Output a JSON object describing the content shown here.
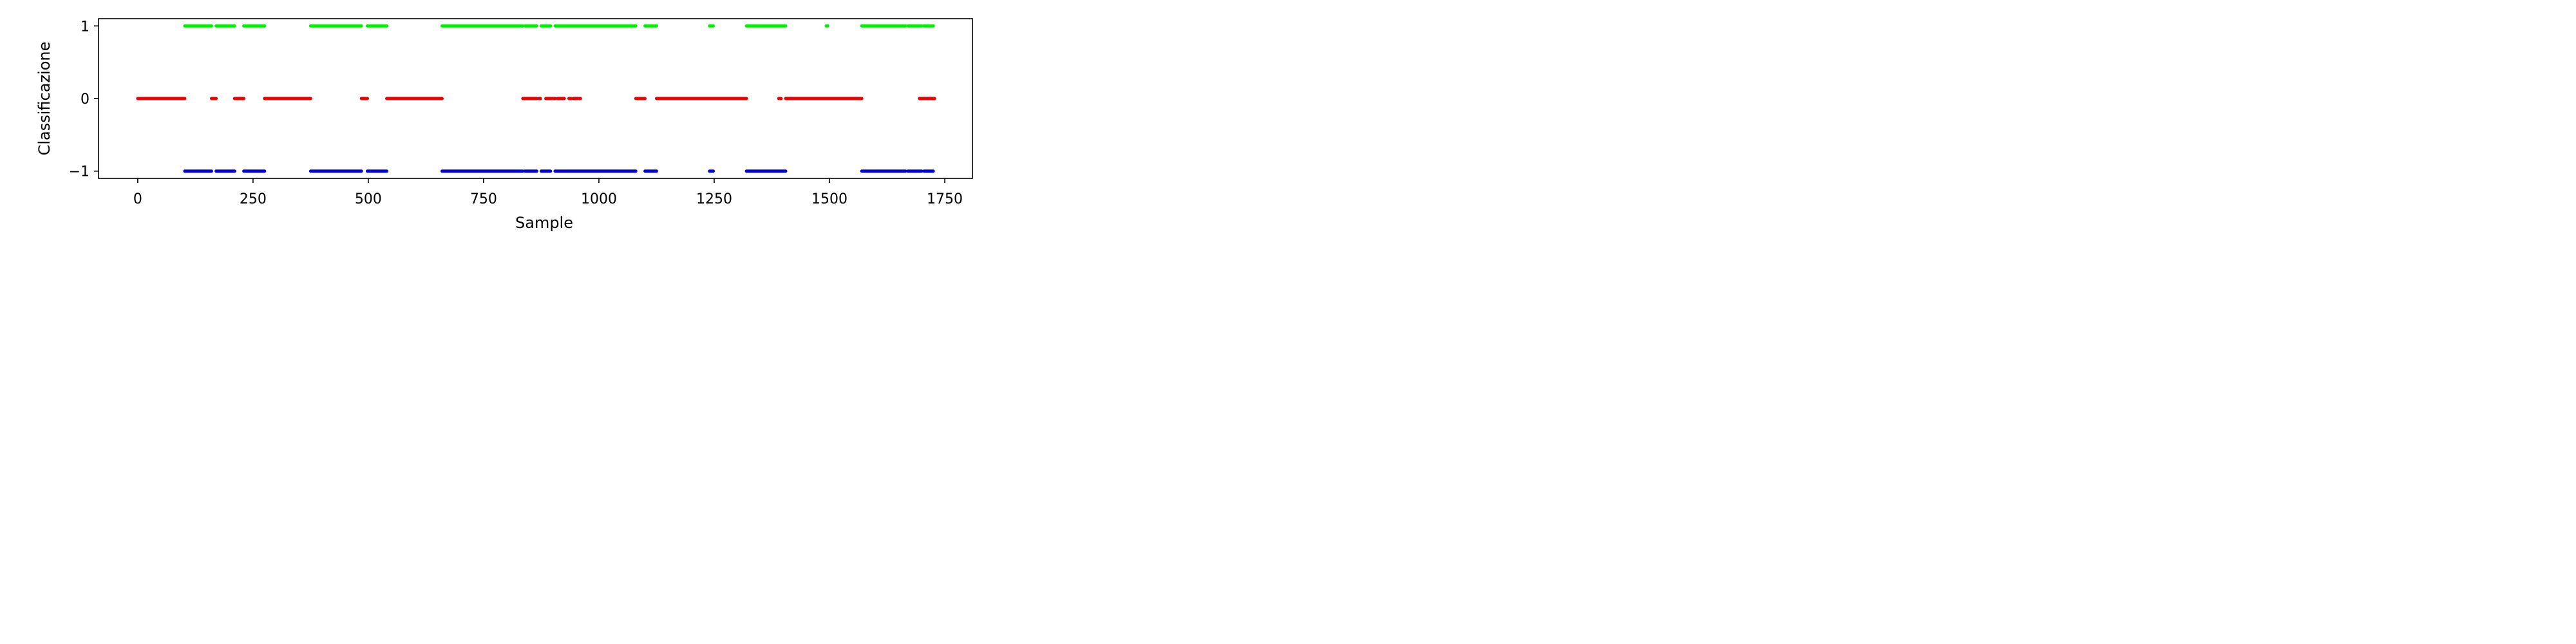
{
  "chart_data": {
    "type": "scatter",
    "title": "",
    "xlabel": "Sample",
    "ylabel": "Classificazione",
    "xlim": [
      -85,
      1810
    ],
    "ylim": [
      -1.1,
      1.1
    ],
    "x_ticks": [
      0,
      250,
      500,
      750,
      1000,
      1250,
      1500,
      1750
    ],
    "x_tick_labels": [
      "0",
      "250",
      "500",
      "750",
      "1000",
      "1250",
      "1500",
      "1750"
    ],
    "y_ticks": [
      -1,
      0,
      1
    ],
    "y_tick_labels": [
      "−1",
      "0",
      "1"
    ],
    "grid": false,
    "legend": "none",
    "series": [
      {
        "value": 1,
        "color": "#00ee00",
        "segments": [
          [
            102,
            160
          ],
          [
            170,
            210
          ],
          [
            230,
            275
          ],
          [
            375,
            485
          ],
          [
            498,
            540
          ],
          [
            660,
            835
          ],
          [
            840,
            865
          ],
          [
            875,
            895
          ],
          [
            905,
            1080
          ],
          [
            1100,
            1125
          ],
          [
            1240,
            1248
          ],
          [
            1320,
            1405
          ],
          [
            1493,
            1496
          ],
          [
            1570,
            1665
          ],
          [
            1670,
            1700
          ],
          [
            1705,
            1725
          ]
        ]
      },
      {
        "value": 0,
        "color": "#ee0000",
        "segments": [
          [
            0,
            102
          ],
          [
            160,
            170
          ],
          [
            210,
            230
          ],
          [
            275,
            375
          ],
          [
            485,
            498
          ],
          [
            540,
            660
          ],
          [
            835,
            865
          ],
          [
            870,
            873
          ],
          [
            885,
            905
          ],
          [
            910,
            925
          ],
          [
            935,
            940
          ],
          [
            945,
            960
          ],
          [
            1080,
            1100
          ],
          [
            1125,
            1320
          ],
          [
            1390,
            1395
          ],
          [
            1405,
            1570
          ],
          [
            1695,
            1728
          ]
        ]
      },
      {
        "value": -1,
        "color": "#0000dd",
        "segments": [
          [
            102,
            160
          ],
          [
            170,
            210
          ],
          [
            230,
            275
          ],
          [
            375,
            485
          ],
          [
            498,
            540
          ],
          [
            660,
            835
          ],
          [
            840,
            865
          ],
          [
            875,
            895
          ],
          [
            905,
            1080
          ],
          [
            1100,
            1125
          ],
          [
            1240,
            1248
          ],
          [
            1320,
            1405
          ],
          [
            1570,
            1665
          ],
          [
            1670,
            1700
          ],
          [
            1705,
            1725
          ]
        ]
      }
    ]
  }
}
